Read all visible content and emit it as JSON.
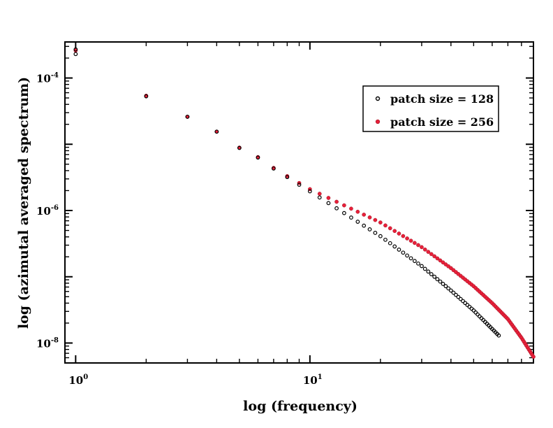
{
  "chart_data": {
    "type": "scatter",
    "xlabel": "log (frequency)",
    "ylabel": "log (azimutal averaged spectrum)",
    "xscale": "log",
    "yscale": "log",
    "xlim": [
      0.9,
      90
    ],
    "ylim": [
      5e-09,
      0.00035
    ],
    "x_ticks": [
      {
        "base": "10",
        "exp": "0"
      },
      {
        "base": "10",
        "exp": "1"
      }
    ],
    "y_ticks": [
      {
        "base": "10",
        "exp": "-4"
      },
      {
        "base": "10",
        "exp": "-6"
      },
      {
        "base": "10",
        "exp": "-8"
      }
    ],
    "grid": false,
    "legend_position": "top-right",
    "series": [
      {
        "name": "patch size = 128",
        "color": "#000000",
        "marker": "open-circle",
        "x_range": [
          1,
          64
        ],
        "points": [
          [
            1,
            0.00023
          ],
          [
            1,
            0.00027
          ],
          [
            2,
            5.3e-05
          ],
          [
            3,
            2.6e-05
          ],
          [
            4,
            1.55e-05
          ],
          [
            5,
            8.8e-06
          ],
          [
            6,
            6.3e-06
          ],
          [
            7,
            4.3e-06
          ],
          [
            8,
            3.2e-06
          ],
          [
            9,
            2.45e-06
          ],
          [
            10,
            1.95e-06
          ],
          [
            20,
            4.1e-07
          ],
          [
            30,
            1.45e-07
          ],
          [
            40,
            6.2e-08
          ],
          [
            50,
            3.1e-08
          ],
          [
            64,
            1.3e-08
          ]
        ]
      },
      {
        "name": "patch size = 256",
        "color": "#e8203a",
        "marker": "filled-circle",
        "x_range": [
          1,
          90
        ],
        "points": [
          [
            1,
            0.00026
          ],
          [
            2,
            5.4e-05
          ],
          [
            3,
            2.6e-05
          ],
          [
            4,
            1.55e-05
          ],
          [
            5,
            8.9e-06
          ],
          [
            6,
            6.4e-06
          ],
          [
            7,
            4.4e-06
          ],
          [
            8,
            3.3e-06
          ],
          [
            9,
            2.6e-06
          ],
          [
            10,
            2.1e-06
          ],
          [
            20,
            6.6e-07
          ],
          [
            30,
            2.8e-07
          ],
          [
            40,
            1.35e-07
          ],
          [
            50,
            7.2e-08
          ],
          [
            60,
            4e-08
          ],
          [
            70,
            2.3e-08
          ],
          [
            80,
            1.2e-08
          ],
          [
            90,
            6.2e-09
          ]
        ]
      }
    ]
  }
}
